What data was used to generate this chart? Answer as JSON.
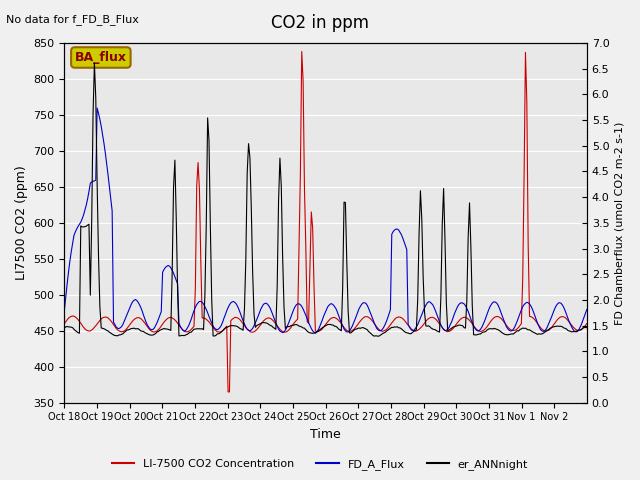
{
  "title": "CO2 in ppm",
  "top_left_text": "No data for f_FD_B_Flux",
  "annotation_text": "BA_flux",
  "xlabel": "Time",
  "ylabel_left": "LI7500 CO2 (ppm)",
  "ylabel_right": "FD Chamberflux (μmol CO2 m-2 s-1)",
  "ylabel_right_display": "FD Chamberflux (umol CO2 m-2 s-1)",
  "ylim_left": [
    350,
    850
  ],
  "ylim_right": [
    0.0,
    7.0
  ],
  "yticks_left": [
    350,
    400,
    450,
    500,
    550,
    600,
    650,
    700,
    750,
    800,
    850
  ],
  "yticks_right": [
    0.0,
    0.5,
    1.0,
    1.5,
    2.0,
    2.5,
    3.0,
    3.5,
    4.0,
    4.5,
    5.0,
    5.5,
    6.0,
    6.5,
    7.0
  ],
  "xtick_labels": [
    "Oct 18",
    "Oct 19",
    "Oct 20",
    "Oct 21",
    "Oct 22",
    "Oct 23",
    "Oct 24",
    "Oct 25",
    "Oct 26",
    "Oct 27",
    "Oct 28",
    "Oct 29",
    "Oct 30",
    "Oct 31",
    "Nov 1",
    "Nov 2"
  ],
  "line_red_label": "LI-7500 CO2 Concentration",
  "line_blue_label": "FD_A_Flux",
  "line_black_label": "er_ANNnight",
  "line_red_color": "#cc0000",
  "line_blue_color": "#0000cc",
  "line_black_color": "#000000",
  "bg_color": "#e8e8e8",
  "fig_bg_color": "#f0f0f0",
  "annotation_bg": "#cccc00",
  "annotation_border": "#996600"
}
